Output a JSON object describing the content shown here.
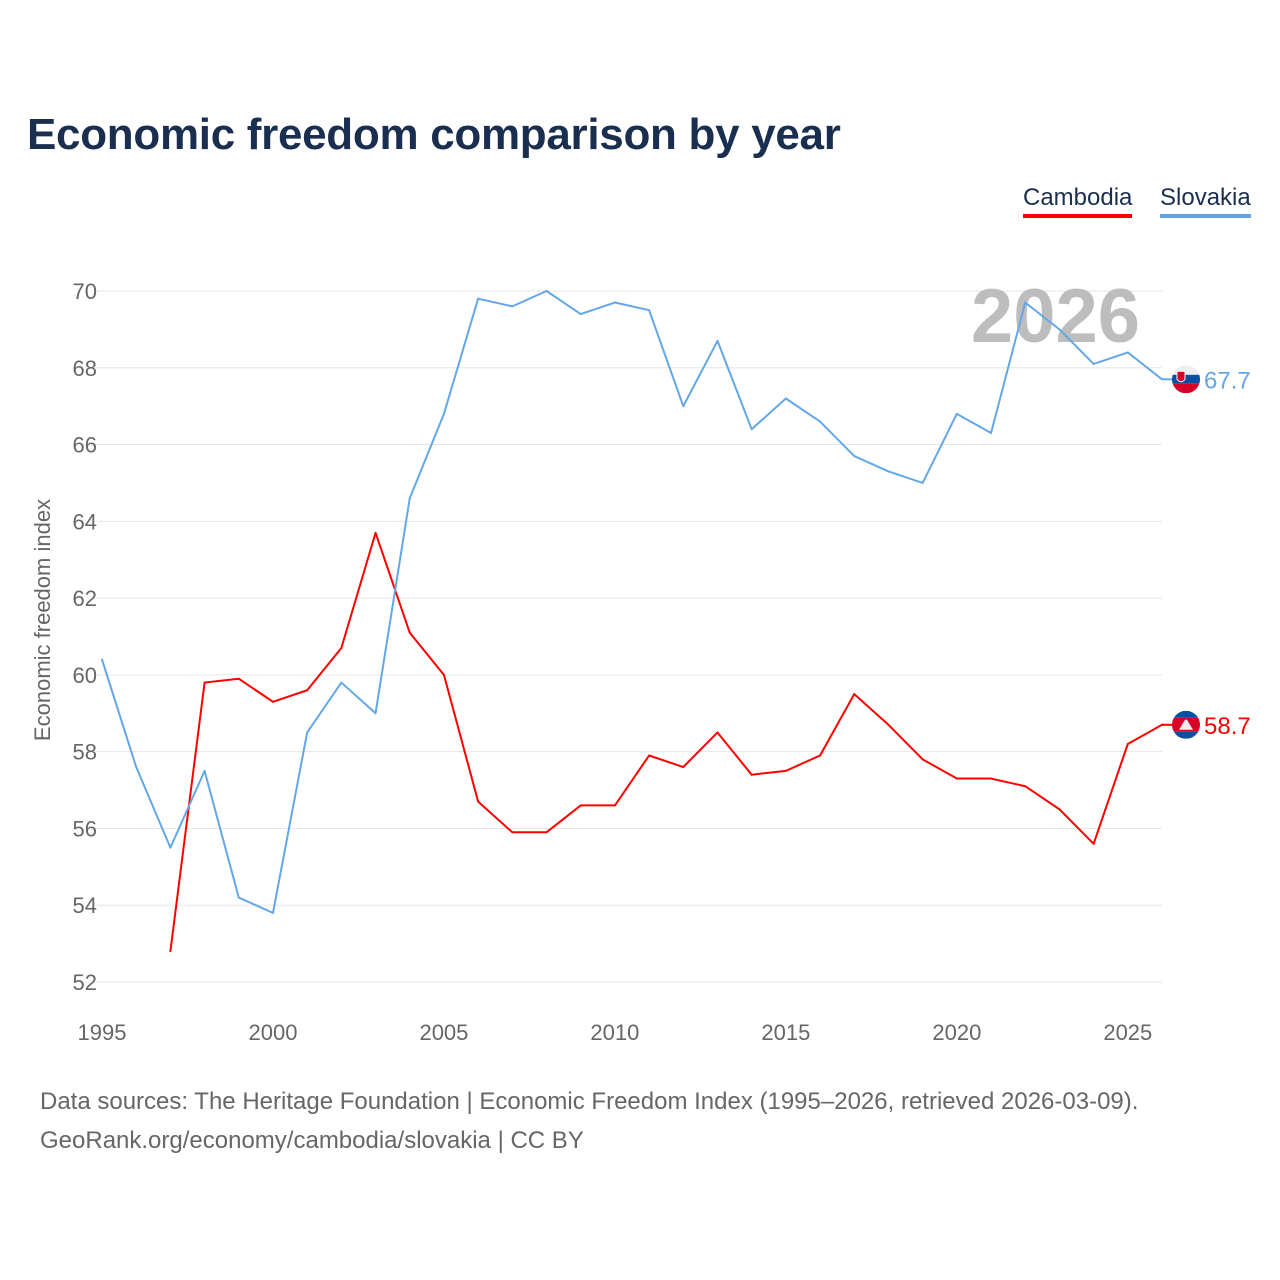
{
  "title": "Economic freedom comparison by year",
  "footer": {
    "line1": "Data sources: The Heritage Foundation | Economic Freedom Index (1995–2026, retrieved 2026-03-09).",
    "line2": "GeoRank.org/economy/cambodia/slovakia | CC BY"
  },
  "chart_data": {
    "type": "line",
    "title": "Economic freedom comparison by year",
    "xlabel": "",
    "ylabel": "Economic freedom index",
    "year_watermark": "2026",
    "xlim": [
      1995,
      2026
    ],
    "ylim": [
      52,
      70
    ],
    "xticks": [
      1995,
      2000,
      2005,
      2010,
      2015,
      2020,
      2025
    ],
    "yticks": [
      52,
      54,
      56,
      58,
      60,
      62,
      64,
      66,
      68,
      70
    ],
    "grid": true,
    "legend_position": "top-right",
    "series": [
      {
        "name": "Cambodia",
        "color": "#ff0000",
        "end_label": "58.7",
        "flag": "cambodia-flag",
        "x": [
          1997,
          1998,
          1999,
          2000,
          2001,
          2002,
          2003,
          2004,
          2005,
          2006,
          2007,
          2008,
          2009,
          2010,
          2011,
          2012,
          2013,
          2014,
          2015,
          2016,
          2017,
          2018,
          2019,
          2020,
          2021,
          2022,
          2023,
          2024,
          2025,
          2026
        ],
        "values": [
          52.8,
          59.8,
          59.9,
          59.3,
          59.6,
          60.7,
          63.7,
          61.1,
          60.0,
          56.7,
          55.9,
          55.9,
          56.6,
          56.6,
          57.9,
          57.6,
          58.5,
          57.4,
          57.5,
          57.9,
          59.5,
          58.7,
          57.8,
          57.3,
          57.3,
          57.1,
          56.5,
          55.6,
          58.2,
          58.7
        ]
      },
      {
        "name": "Slovakia",
        "color": "#63a7e6",
        "end_label": "67.7",
        "flag": "slovakia-flag",
        "x": [
          1995,
          1996,
          1997,
          1998,
          1999,
          2000,
          2001,
          2002,
          2003,
          2004,
          2005,
          2006,
          2007,
          2008,
          2009,
          2010,
          2011,
          2012,
          2013,
          2014,
          2015,
          2016,
          2017,
          2018,
          2019,
          2020,
          2021,
          2022,
          2023,
          2024,
          2025,
          2026
        ],
        "values": [
          60.4,
          57.6,
          55.5,
          57.5,
          54.2,
          53.8,
          58.5,
          59.8,
          59.0,
          64.6,
          66.8,
          69.8,
          69.6,
          70.0,
          69.4,
          69.7,
          69.5,
          67.0,
          68.7,
          66.4,
          67.2,
          66.6,
          65.7,
          65.3,
          65.0,
          66.8,
          66.3,
          69.7,
          69.0,
          68.1,
          68.4,
          67.7
        ]
      }
    ]
  }
}
